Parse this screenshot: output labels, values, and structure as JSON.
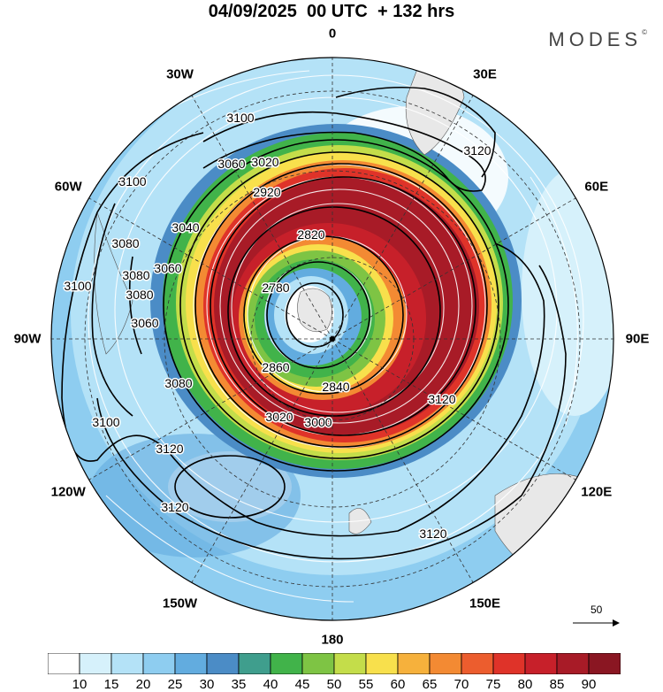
{
  "header": {
    "title": "04/09/2025  00 UTC  + 132 hrs",
    "brand": "MODES",
    "brand_mark": "©"
  },
  "map": {
    "projection": "polar-stereographic-south",
    "longitude_labels": [
      {
        "text": "0",
        "lon": 0
      },
      {
        "text": "30E",
        "lon": 30
      },
      {
        "text": "60E",
        "lon": 60
      },
      {
        "text": "90E",
        "lon": 90
      },
      {
        "text": "120E",
        "lon": 120
      },
      {
        "text": "150E",
        "lon": 150
      },
      {
        "text": "180",
        "lon": 180
      },
      {
        "text": "150W",
        "lon": -150
      },
      {
        "text": "120W",
        "lon": -120
      },
      {
        "text": "90W",
        "lon": -90
      },
      {
        "text": "60W",
        "lon": -60
      },
      {
        "text": "30W",
        "lon": -30
      }
    ],
    "contour_labels": [
      "3100",
      "3060",
      "3020",
      "2920",
      "2820",
      "2780",
      "2840",
      "2860",
      "3000",
      "3020",
      "3080",
      "3060",
      "3080",
      "3100",
      "3120",
      "3120",
      "3120",
      "3120",
      "3100",
      "3120",
      "3100",
      "3080",
      "3060",
      "3040",
      "3080"
    ],
    "wind_speed_shading": "jet ring 60-90 around pole",
    "colors": {
      "background": "#ffffff",
      "land": "#e8e8e8"
    }
  },
  "wind_reference": {
    "label": "50"
  },
  "colorbar": {
    "labels": [
      "10",
      "15",
      "20",
      "25",
      "30",
      "35",
      "40",
      "45",
      "50",
      "55",
      "60",
      "65",
      "70",
      "75",
      "80",
      "85",
      "90"
    ],
    "colors": [
      "#ffffff",
      "#d6f1fb",
      "#b4e2f7",
      "#8ecdf0",
      "#62acdf",
      "#4b8cc6",
      "#3f9e8d",
      "#41b34a",
      "#7ec444",
      "#c4dd4a",
      "#f8e04c",
      "#f6b13c",
      "#f38a33",
      "#ec5d2e",
      "#df3329",
      "#c7202a",
      "#a81b27",
      "#8a1622"
    ]
  }
}
